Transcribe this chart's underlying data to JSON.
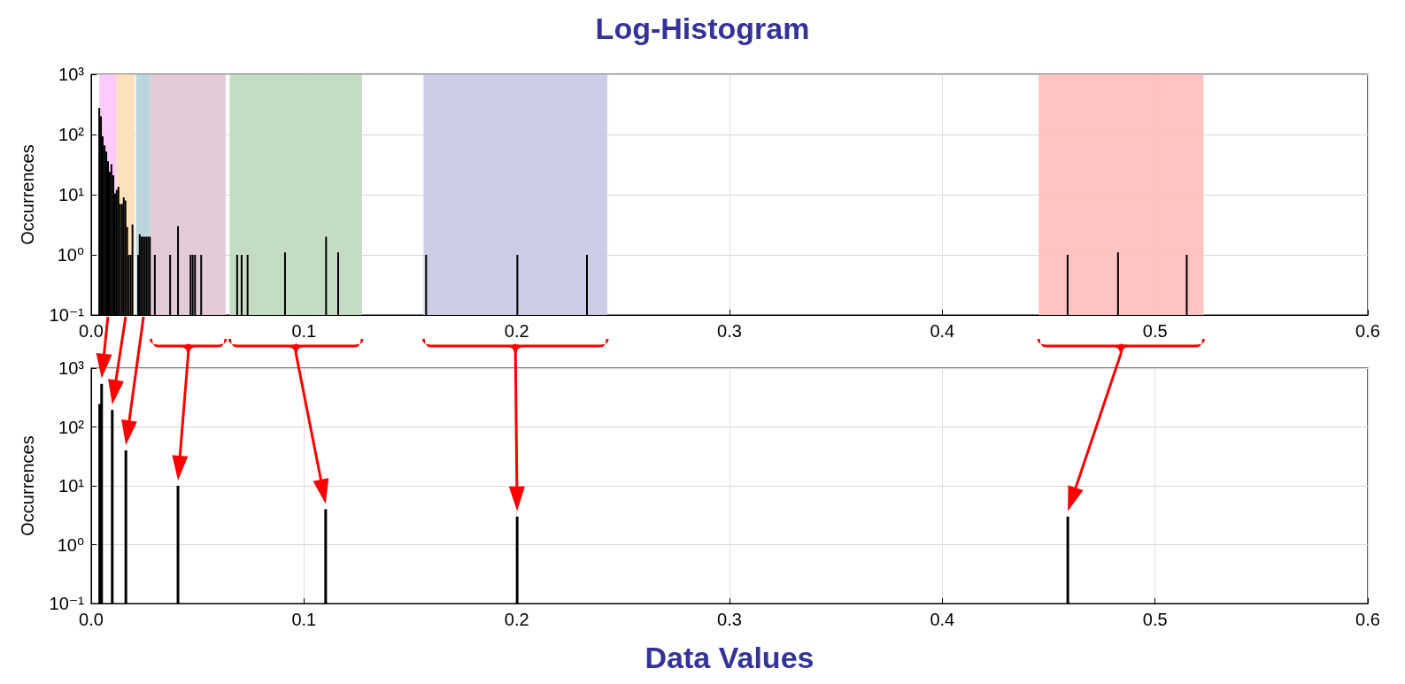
{
  "chart_data": [
    {
      "type": "bar",
      "title": "Log-Histogram",
      "ylabel": "Occurrences",
      "color": "#000000",
      "log": "y",
      "grid": true,
      "xlim": [
        0,
        0.6
      ],
      "xticks": [
        {
          "value": 0,
          "label": "0.0"
        },
        0.1,
        0.2,
        0.3,
        0.4,
        0.5,
        0.6
      ],
      "ylim": [
        0.1,
        1000
      ],
      "yticks": [
        {
          "value": 0.1,
          "label": "10⁻¹"
        },
        {
          "value": 1,
          "label": "10⁰"
        },
        {
          "value": 10,
          "label": "10¹"
        },
        {
          "value": 100,
          "label": "10²"
        },
        {
          "value": 1000,
          "label": "10³"
        }
      ],
      "x": [
        0.0038,
        0.0046,
        0.0054,
        0.0063,
        0.0071,
        0.0079,
        0.0087,
        0.0095,
        0.0104,
        0.0112,
        0.012,
        0.0128,
        0.0136,
        0.0145,
        0.0153,
        0.0161,
        0.0169,
        0.0177,
        0.0186,
        0.0194,
        0.0221,
        0.0228,
        0.0236,
        0.0244,
        0.0252,
        0.026,
        0.0268,
        0.0276,
        0.0299,
        0.0371,
        0.0408,
        0.0467,
        0.0477,
        0.0488,
        0.0517,
        0.0686,
        0.0707,
        0.0735,
        0.0911,
        0.1104,
        0.1161,
        0.1574,
        0.2003,
        0.233,
        0.4589,
        0.4826,
        0.5149
      ],
      "values": [
        275,
        200,
        93,
        66,
        52,
        36,
        24,
        32,
        21,
        10.5,
        12,
        13.5,
        7,
        7,
        9,
        8,
        2.9,
        1,
        1,
        3.2,
        1,
        2.2,
        2,
        2,
        2,
        2,
        2,
        2,
        1,
        1,
        3,
        1,
        1,
        1,
        1,
        1,
        1,
        1,
        1.1,
        2,
        1.1,
        1,
        1,
        1,
        1,
        1.1,
        1
      ],
      "bands": [
        {
          "axis": "x",
          "from": 0.0038,
          "to": 0.0119,
          "color": "#fcc8fc"
        },
        {
          "axis": "x",
          "from": 0.0119,
          "to": 0.0205,
          "color": "#fde0b8"
        },
        {
          "axis": "x",
          "from": 0.0211,
          "to": 0.0281,
          "color": "#b9d4dc"
        },
        {
          "axis": "x",
          "from": 0.0281,
          "to": 0.0632,
          "color": "#e3c8d6"
        },
        {
          "axis": "x",
          "from": 0.0651,
          "to": 0.1273,
          "color": "#c1dbbf"
        },
        {
          "axis": "x",
          "from": 0.1562,
          "to": 0.2426,
          "color": "#cacae4"
        },
        {
          "axis": "x",
          "from": 0.4453,
          "to": 0.5228,
          "color": "#ffc0c0"
        }
      ]
    },
    {
      "type": "bar",
      "xlabel": "Data Values",
      "ylabel": "Occurrences",
      "color": "#000000",
      "log": "y",
      "grid": true,
      "xlim": [
        0,
        0.6
      ],
      "xticks": [
        {
          "value": 0,
          "label": "0.0"
        },
        0.1,
        0.2,
        0.3,
        0.4,
        0.5,
        0.6
      ],
      "ylim": [
        0.1,
        1000
      ],
      "yticks": [
        {
          "value": 0.1,
          "label": "10⁻¹"
        },
        {
          "value": 1,
          "label": "10⁰"
        },
        {
          "value": 10,
          "label": "10¹"
        },
        {
          "value": 100,
          "label": "10²"
        },
        {
          "value": 1000,
          "label": "10³"
        }
      ],
      "x": [
        0.004,
        0.0049,
        0.0099,
        0.0163,
        0.0408,
        0.1102,
        0.2002,
        0.459
      ],
      "values": [
        245,
        540,
        195,
        40,
        10,
        4,
        3,
        3
      ]
    }
  ]
}
